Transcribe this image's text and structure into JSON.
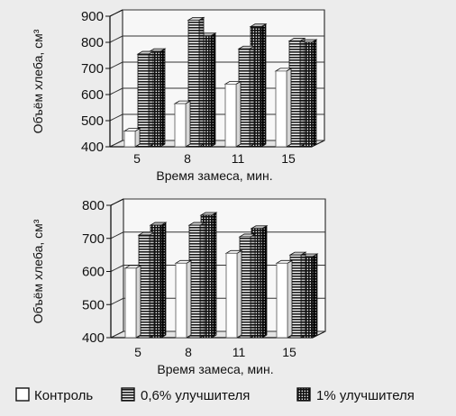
{
  "chart_data": [
    {
      "type": "bar",
      "categories": [
        "5",
        "8",
        "11",
        "15"
      ],
      "series": [
        {
          "name": "Контроль",
          "values": [
            460,
            565,
            640,
            690
          ]
        },
        {
          "name": "0,6% улучшителя",
          "values": [
            755,
            885,
            775,
            805
          ]
        },
        {
          "name": "1% улучшителя",
          "values": [
            765,
            825,
            860,
            800
          ]
        }
      ],
      "xlabel": "Время замеса, мин.",
      "ylabel": "Объём хлеба, см³",
      "ylim": [
        400,
        900
      ],
      "yticks": [
        "400",
        "500",
        "600",
        "700",
        "800",
        "900"
      ],
      "grid": true,
      "style": "3d-bars"
    },
    {
      "type": "bar",
      "categories": [
        "5",
        "8",
        "11",
        "15"
      ],
      "series": [
        {
          "name": "Контроль",
          "values": [
            610,
            625,
            655,
            625
          ]
        },
        {
          "name": "0,6% улучшителя",
          "values": [
            710,
            740,
            705,
            650
          ]
        },
        {
          "name": "1% улучшителя",
          "values": [
            740,
            770,
            730,
            645
          ]
        }
      ],
      "xlabel": "Время замеса, мин.",
      "ylabel": "Объём хлеба, см³",
      "ylim": [
        400,
        800
      ],
      "yticks": [
        "400",
        "500",
        "600",
        "700",
        "800"
      ],
      "grid": true,
      "style": "3d-bars"
    }
  ],
  "legend": {
    "placement": "bottom",
    "items": [
      {
        "label": "Контроль",
        "pattern": "white"
      },
      {
        "label": "0,6% улучшителя",
        "pattern": "horizontal-hatch"
      },
      {
        "label": "1% улучшителя",
        "pattern": "grid-hatch"
      }
    ]
  },
  "colors": {
    "background": "#ececec",
    "ink": "#111111",
    "bar_face": "#ffffff"
  }
}
